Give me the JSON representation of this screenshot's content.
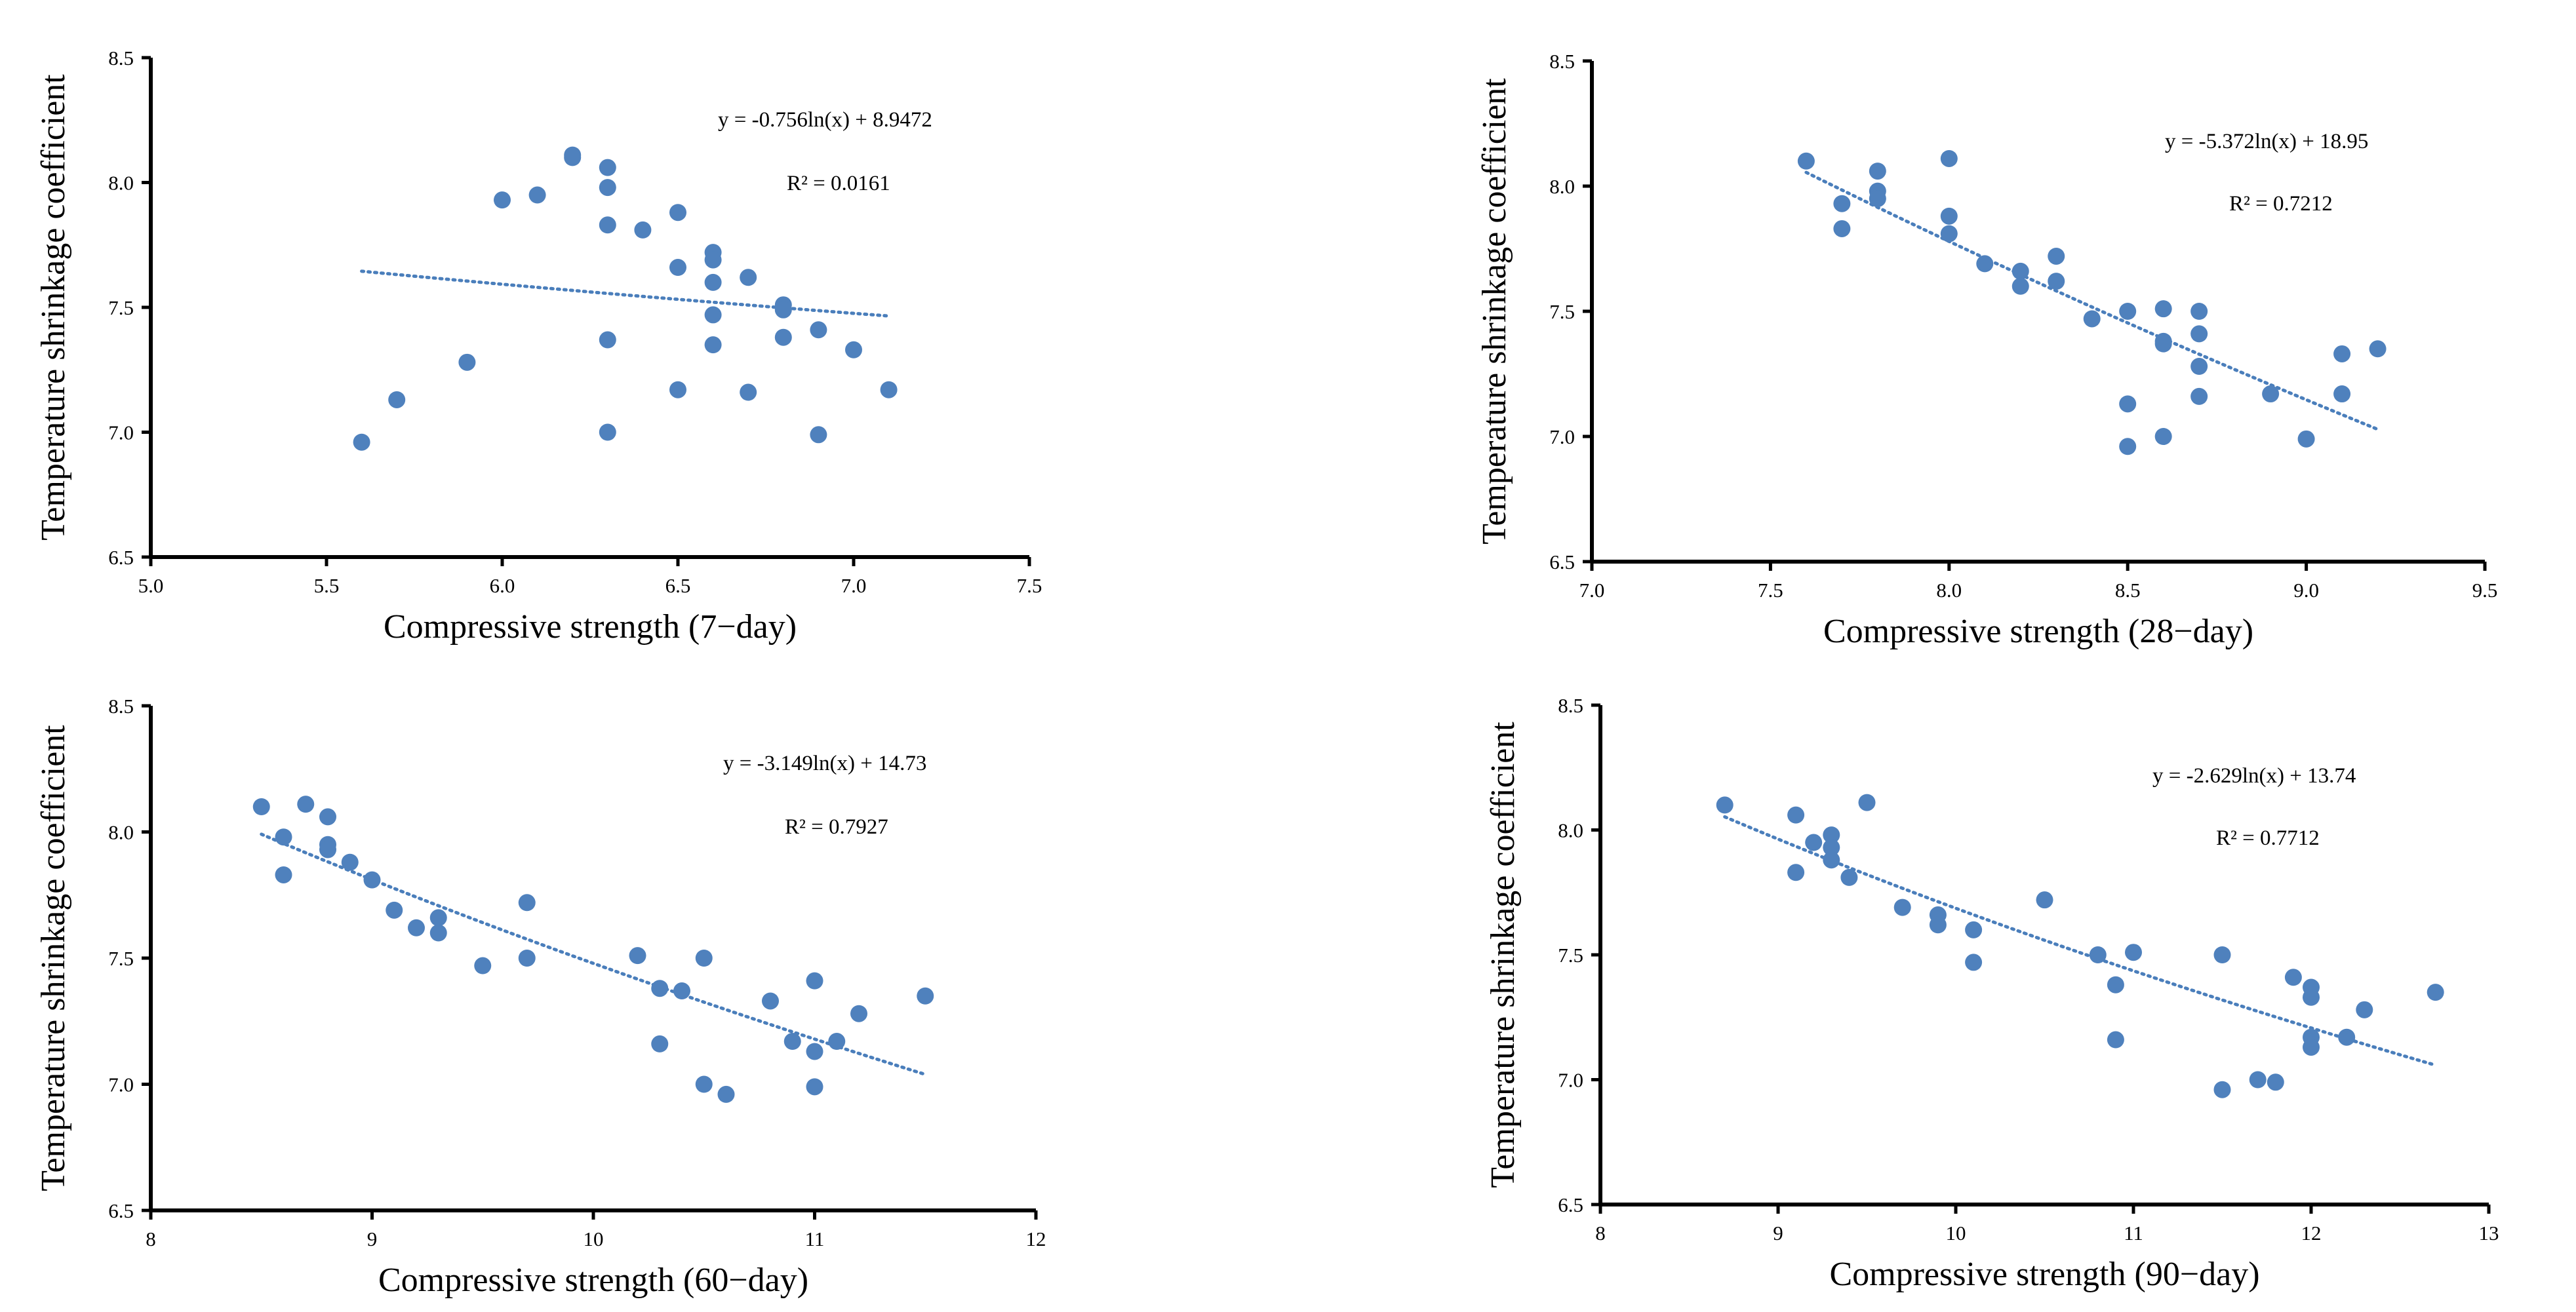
{
  "colors": {
    "marker": "#4f81bd",
    "trendline": "#4a7ebb",
    "axis": "#000000"
  },
  "chart_data": [
    {
      "type": "scatter",
      "title": "",
      "xlabel": "Compressive strength (7−day)",
      "ylabel": "Temperature shrinkage coefficient",
      "xlim": [
        5.0,
        7.5
      ],
      "ylim": [
        6.5,
        8.5
      ],
      "xticks": [
        "5.0",
        "5.5",
        "6.0",
        "6.5",
        "7.0",
        "7.5"
      ],
      "yticks": [
        "6.5",
        "7.0",
        "7.5",
        "8.0",
        "8.5"
      ],
      "equation": "y = -0.756ln(x)  + 8.9472",
      "r2": "R² = 0.0161",
      "trendline": {
        "a": -0.756,
        "b": 8.9472,
        "x_range": [
          5.6,
          7.1
        ]
      },
      "points": [
        {
          "x": 5.6,
          "y": 6.96
        },
        {
          "x": 5.7,
          "y": 7.13
        },
        {
          "x": 5.9,
          "y": 7.28
        },
        {
          "x": 6.0,
          "y": 7.93
        },
        {
          "x": 6.1,
          "y": 7.95
        },
        {
          "x": 6.2,
          "y": 8.1
        },
        {
          "x": 6.2,
          "y": 8.11
        },
        {
          "x": 6.3,
          "y": 8.06
        },
        {
          "x": 6.3,
          "y": 7.98
        },
        {
          "x": 6.3,
          "y": 7.83
        },
        {
          "x": 6.3,
          "y": 7.37
        },
        {
          "x": 6.3,
          "y": 7.0
        },
        {
          "x": 6.4,
          "y": 7.81
        },
        {
          "x": 6.5,
          "y": 7.88
        },
        {
          "x": 6.5,
          "y": 7.66
        },
        {
          "x": 6.5,
          "y": 7.17
        },
        {
          "x": 6.6,
          "y": 7.72
        },
        {
          "x": 6.6,
          "y": 7.69
        },
        {
          "x": 6.6,
          "y": 7.6
        },
        {
          "x": 6.6,
          "y": 7.47
        },
        {
          "x": 6.6,
          "y": 7.35
        },
        {
          "x": 6.7,
          "y": 7.62
        },
        {
          "x": 6.7,
          "y": 7.16
        },
        {
          "x": 6.8,
          "y": 7.51
        },
        {
          "x": 6.8,
          "y": 7.49
        },
        {
          "x": 6.8,
          "y": 7.38
        },
        {
          "x": 6.9,
          "y": 7.41
        },
        {
          "x": 6.9,
          "y": 6.99
        },
        {
          "x": 7.0,
          "y": 7.33
        },
        {
          "x": 7.1,
          "y": 7.17
        }
      ]
    },
    {
      "type": "scatter",
      "title": "",
      "xlabel": "Compressive strength (28−day)",
      "ylabel": "Temperature shrinkage coefficient",
      "xlim": [
        7.0,
        9.5
      ],
      "ylim": [
        6.5,
        8.5
      ],
      "xticks": [
        "7.0",
        "7.5",
        "8.0",
        "8.5",
        "9.0",
        "9.5"
      ],
      "yticks": [
        "6.5",
        "7.0",
        "7.5",
        "8.0",
        "8.5"
      ],
      "equation": "y = -5.372ln(x)  + 18.95",
      "r2": "R² = 0.7212",
      "trendline": {
        "a": -5.372,
        "b": 18.95,
        "x_range": [
          7.6,
          9.2
        ]
      },
      "points": [
        {
          "x": 7.6,
          "y": 8.1
        },
        {
          "x": 7.7,
          "y": 7.93
        },
        {
          "x": 7.7,
          "y": 7.83
        },
        {
          "x": 7.8,
          "y": 8.06
        },
        {
          "x": 7.8,
          "y": 7.98
        },
        {
          "x": 7.8,
          "y": 7.95
        },
        {
          "x": 8.0,
          "y": 8.11
        },
        {
          "x": 8.0,
          "y": 7.88
        },
        {
          "x": 8.0,
          "y": 7.81
        },
        {
          "x": 8.1,
          "y": 7.69
        },
        {
          "x": 8.2,
          "y": 7.66
        },
        {
          "x": 8.2,
          "y": 7.6
        },
        {
          "x": 8.3,
          "y": 7.72
        },
        {
          "x": 8.3,
          "y": 7.62
        },
        {
          "x": 8.4,
          "y": 7.47
        },
        {
          "x": 8.5,
          "y": 7.5
        },
        {
          "x": 8.5,
          "y": 7.13
        },
        {
          "x": 8.5,
          "y": 6.96
        },
        {
          "x": 8.6,
          "y": 7.51
        },
        {
          "x": 8.6,
          "y": 7.38
        },
        {
          "x": 8.6,
          "y": 7.37
        },
        {
          "x": 8.6,
          "y": 7.0
        },
        {
          "x": 8.7,
          "y": 7.5
        },
        {
          "x": 8.7,
          "y": 7.41
        },
        {
          "x": 8.7,
          "y": 7.28
        },
        {
          "x": 8.7,
          "y": 7.16
        },
        {
          "x": 8.9,
          "y": 7.17
        },
        {
          "x": 9.0,
          "y": 6.99
        },
        {
          "x": 9.1,
          "y": 7.33
        },
        {
          "x": 9.1,
          "y": 7.17
        },
        {
          "x": 9.2,
          "y": 7.35
        }
      ]
    },
    {
      "type": "scatter",
      "title": "",
      "xlabel": "Compressive strength (60−day)",
      "ylabel": "Temperature shrinkage coefficient",
      "xlim": [
        8,
        12
      ],
      "ylim": [
        6.5,
        8.5
      ],
      "xticks": [
        "8",
        "9",
        "10",
        "11",
        "12"
      ],
      "yticks": [
        "6.5",
        "7.0",
        "7.5",
        "8.0",
        "8.5"
      ],
      "equation": "y = -3.149ln(x)  + 14.73",
      "r2": "R² = 0.7927",
      "trendline": {
        "a": -3.149,
        "b": 14.73,
        "x_range": [
          8.5,
          11.5
        ]
      },
      "points": [
        {
          "x": 8.5,
          "y": 8.1
        },
        {
          "x": 8.6,
          "y": 7.98
        },
        {
          "x": 8.6,
          "y": 7.83
        },
        {
          "x": 8.7,
          "y": 8.11
        },
        {
          "x": 8.8,
          "y": 8.06
        },
        {
          "x": 8.8,
          "y": 7.95
        },
        {
          "x": 8.8,
          "y": 7.93
        },
        {
          "x": 8.9,
          "y": 7.88
        },
        {
          "x": 9.0,
          "y": 7.81
        },
        {
          "x": 9.1,
          "y": 7.69
        },
        {
          "x": 9.2,
          "y": 7.62
        },
        {
          "x": 9.3,
          "y": 7.66
        },
        {
          "x": 9.3,
          "y": 7.6
        },
        {
          "x": 9.5,
          "y": 7.47
        },
        {
          "x": 9.7,
          "y": 7.72
        },
        {
          "x": 9.7,
          "y": 7.5
        },
        {
          "x": 10.2,
          "y": 7.51
        },
        {
          "x": 10.3,
          "y": 7.38
        },
        {
          "x": 10.3,
          "y": 7.16
        },
        {
          "x": 10.4,
          "y": 7.37
        },
        {
          "x": 10.5,
          "y": 7.5
        },
        {
          "x": 10.5,
          "y": 7.0
        },
        {
          "x": 10.6,
          "y": 6.96
        },
        {
          "x": 10.8,
          "y": 7.33
        },
        {
          "x": 10.9,
          "y": 7.17
        },
        {
          "x": 11.0,
          "y": 7.41
        },
        {
          "x": 11.0,
          "y": 7.13
        },
        {
          "x": 11.0,
          "y": 6.99
        },
        {
          "x": 11.1,
          "y": 7.17
        },
        {
          "x": 11.2,
          "y": 7.28
        },
        {
          "x": 11.5,
          "y": 7.35
        }
      ]
    },
    {
      "type": "scatter",
      "title": "",
      "xlabel": "Compressive strength (90−day)",
      "ylabel": "Temperature shrinkage coefficient",
      "xlim": [
        8,
        13
      ],
      "ylim": [
        6.5,
        8.5
      ],
      "xticks": [
        "8",
        "9",
        "10",
        "11",
        "12",
        "13"
      ],
      "yticks": [
        "6.5",
        "7.0",
        "7.5",
        "8.0",
        "8.5"
      ],
      "equation": "y = -2.629ln(x)  + 13.74",
      "r2": "R² = 0.7712",
      "trendline": {
        "a": -2.629,
        "b": 13.74,
        "x_range": [
          8.7,
          12.7
        ]
      },
      "points": [
        {
          "x": 8.7,
          "y": 8.1
        },
        {
          "x": 9.1,
          "y": 8.06
        },
        {
          "x": 9.1,
          "y": 7.83
        },
        {
          "x": 9.2,
          "y": 7.95
        },
        {
          "x": 9.3,
          "y": 7.98
        },
        {
          "x": 9.3,
          "y": 7.93
        },
        {
          "x": 9.3,
          "y": 7.88
        },
        {
          "x": 9.4,
          "y": 7.81
        },
        {
          "x": 9.5,
          "y": 8.11
        },
        {
          "x": 9.7,
          "y": 7.69
        },
        {
          "x": 9.9,
          "y": 7.66
        },
        {
          "x": 9.9,
          "y": 7.62
        },
        {
          "x": 10.1,
          "y": 7.6
        },
        {
          "x": 10.1,
          "y": 7.47
        },
        {
          "x": 10.5,
          "y": 7.72
        },
        {
          "x": 10.8,
          "y": 7.5
        },
        {
          "x": 10.9,
          "y": 7.38
        },
        {
          "x": 10.9,
          "y": 7.16
        },
        {
          "x": 11.0,
          "y": 7.51
        },
        {
          "x": 11.5,
          "y": 7.5
        },
        {
          "x": 11.5,
          "y": 6.96
        },
        {
          "x": 11.7,
          "y": 7.0
        },
        {
          "x": 11.8,
          "y": 6.99
        },
        {
          "x": 11.9,
          "y": 7.41
        },
        {
          "x": 12.0,
          "y": 7.37
        },
        {
          "x": 12.0,
          "y": 7.33
        },
        {
          "x": 12.0,
          "y": 7.17
        },
        {
          "x": 12.0,
          "y": 7.13
        },
        {
          "x": 12.2,
          "y": 7.17
        },
        {
          "x": 12.3,
          "y": 7.28
        },
        {
          "x": 12.7,
          "y": 7.35
        }
      ]
    }
  ]
}
